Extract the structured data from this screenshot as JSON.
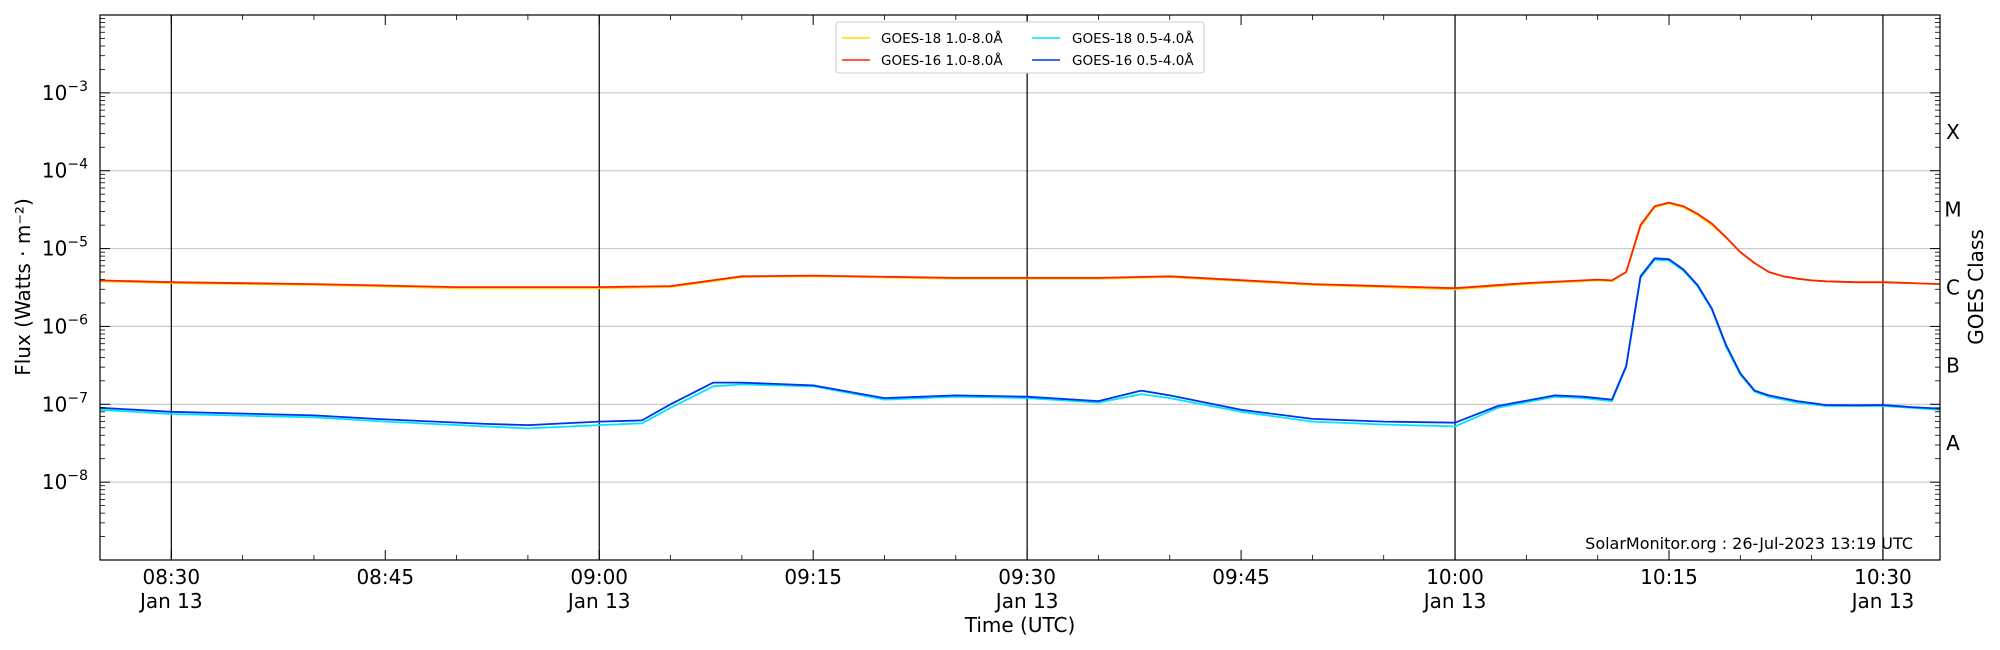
{
  "chart_data": {
    "type": "line",
    "xlabel": "Time (UTC)",
    "ylabel": "Flux (Watts · m⁻²)",
    "right_label": "GOES Class",
    "credit": "SolarMonitor.org : 26-Jul-2023 13:19 UTC",
    "y_scale": "log",
    "ylim": [
      1e-09,
      0.01
    ],
    "xlim": [
      "08:25",
      "10:34"
    ],
    "grid": "horizontal at decades",
    "legend_placement": "top-center",
    "y_ticks": [
      {
        "value": 0.001,
        "base": "10",
        "exp": "−3"
      },
      {
        "value": 0.0001,
        "base": "10",
        "exp": "−4"
      },
      {
        "value": 1e-05,
        "base": "10",
        "exp": "−5"
      },
      {
        "value": 1e-06,
        "base": "10",
        "exp": "−6"
      },
      {
        "value": 1e-07,
        "base": "10",
        "exp": "−7"
      },
      {
        "value": 1e-08,
        "base": "10",
        "exp": "−8"
      }
    ],
    "x_ticks": [
      {
        "time": "08:30",
        "line1": "08:30",
        "line2": "Jan 13",
        "major": true
      },
      {
        "time": "08:45",
        "line1": "08:45",
        "line2": "",
        "major": false
      },
      {
        "time": "09:00",
        "line1": "09:00",
        "line2": "Jan 13",
        "major": true
      },
      {
        "time": "09:15",
        "line1": "09:15",
        "line2": "",
        "major": false
      },
      {
        "time": "09:30",
        "line1": "09:30",
        "line2": "Jan 13",
        "major": true
      },
      {
        "time": "09:45",
        "line1": "09:45",
        "line2": "",
        "major": false
      },
      {
        "time": "10:00",
        "line1": "10:00",
        "line2": "Jan 13",
        "major": true
      },
      {
        "time": "10:15",
        "line1": "10:15",
        "line2": "",
        "major": false
      },
      {
        "time": "10:30",
        "line1": "10:30",
        "line2": "Jan 13",
        "major": true
      }
    ],
    "goes_classes": [
      {
        "label": "X",
        "flux": 0.000316
      },
      {
        "label": "M",
        "flux": 3.16e-05
      },
      {
        "label": "C",
        "flux": 3.16e-06
      },
      {
        "label": "B",
        "flux": 3.16e-07
      },
      {
        "label": "A",
        "flux": 3.16e-08
      }
    ],
    "series": [
      {
        "name": "GOES-18 1.0-8.0Å",
        "color": "#ffd700",
        "x": [
          "08:25",
          "08:30",
          "08:40",
          "08:50",
          "09:00",
          "09:05",
          "09:10",
          "09:15",
          "09:25",
          "09:35",
          "09:40",
          "09:50",
          "10:00",
          "10:05",
          "10:10",
          "10:11",
          "10:12",
          "10:13",
          "10:14",
          "10:15",
          "10:16",
          "10:17",
          "10:18",
          "10:19",
          "10:20",
          "10:21",
          "10:22",
          "10:23",
          "10:24",
          "10:25",
          "10:26",
          "10:28",
          "10:30",
          "10:32",
          "10:34"
        ],
        "y": [
          3.8e-06,
          3.6e-06,
          3.4e-06,
          3.1e-06,
          3.1e-06,
          3.2e-06,
          4.3e-06,
          4.4e-06,
          4.1e-06,
          4.1e-06,
          4.3e-06,
          3.4e-06,
          3e-06,
          3.5e-06,
          3.9e-06,
          3.8e-06,
          5e-06,
          1.9e-05,
          3.4e-05,
          3.8e-05,
          3.4e-05,
          2.7e-05,
          2e-05,
          1.4e-05,
          9e-06,
          6.5e-06,
          5e-06,
          4.4e-06,
          4.1e-06,
          3.9e-06,
          3.8e-06,
          3.7e-06,
          3.7e-06,
          3.6e-06,
          3.5e-06
        ]
      },
      {
        "name": "GOES-16 1.0-8.0Å",
        "color": "#ff2200",
        "x": [
          "08:25",
          "08:30",
          "08:40",
          "08:50",
          "09:00",
          "09:05",
          "09:10",
          "09:15",
          "09:25",
          "09:35",
          "09:40",
          "09:50",
          "10:00",
          "10:05",
          "10:10",
          "10:11",
          "10:12",
          "10:13",
          "10:14",
          "10:15",
          "10:16",
          "10:17",
          "10:18",
          "10:19",
          "10:20",
          "10:21",
          "10:22",
          "10:23",
          "10:24",
          "10:25",
          "10:26",
          "10:28",
          "10:30",
          "10:32",
          "10:34"
        ],
        "y": [
          3.9e-06,
          3.7e-06,
          3.5e-06,
          3.2e-06,
          3.2e-06,
          3.3e-06,
          4.4e-06,
          4.5e-06,
          4.2e-06,
          4.2e-06,
          4.4e-06,
          3.5e-06,
          3.1e-06,
          3.6e-06,
          4e-06,
          3.9e-06,
          5e-06,
          2e-05,
          3.5e-05,
          3.9e-05,
          3.5e-05,
          2.8e-05,
          2.1e-05,
          1.4e-05,
          9e-06,
          6.5e-06,
          5e-06,
          4.4e-06,
          4.1e-06,
          3.9e-06,
          3.8e-06,
          3.7e-06,
          3.7e-06,
          3.6e-06,
          3.5e-06
        ]
      },
      {
        "name": "GOES-18 0.5-4.0Å",
        "color": "#00e5ff",
        "x": [
          "08:25",
          "08:30",
          "08:40",
          "08:45",
          "08:52",
          "08:55",
          "09:00",
          "09:03",
          "09:05",
          "09:08",
          "09:10",
          "09:15",
          "09:20",
          "09:25",
          "09:30",
          "09:35",
          "09:38",
          "09:40",
          "09:45",
          "09:50",
          "09:55",
          "10:00",
          "10:03",
          "10:07",
          "10:09",
          "10:11",
          "10:12",
          "10:13",
          "10:14",
          "10:15",
          "10:16",
          "10:17",
          "10:18",
          "10:19",
          "10:20",
          "10:21",
          "10:22",
          "10:24",
          "10:26",
          "10:28",
          "10:30",
          "10:32",
          "10:34"
        ],
        "y": [
          8.5e-08,
          7.5e-08,
          6.8e-08,
          6e-08,
          5.2e-08,
          4.9e-08,
          5.4e-08,
          5.7e-08,
          9e-08,
          1.7e-07,
          1.8e-07,
          1.7e-07,
          1.15e-07,
          1.25e-07,
          1.2e-07,
          1.05e-07,
          1.35e-07,
          1.2e-07,
          8e-08,
          6e-08,
          5.5e-08,
          5.2e-08,
          9e-08,
          1.25e-07,
          1.2e-07,
          1.1e-07,
          3e-07,
          4.2e-06,
          7.2e-06,
          7e-06,
          5.2e-06,
          3.3e-06,
          1.65e-06,
          5.5e-07,
          2.4e-07,
          1.45e-07,
          1.25e-07,
          1.05e-07,
          9.5e-08,
          9.5e-08,
          9.5e-08,
          9e-08,
          8.5e-08
        ]
      },
      {
        "name": "GOES-16 0.5-4.0Å",
        "color": "#0033ee",
        "x": [
          "08:25",
          "08:30",
          "08:40",
          "08:45",
          "08:52",
          "08:55",
          "09:00",
          "09:03",
          "09:05",
          "09:08",
          "09:10",
          "09:15",
          "09:20",
          "09:25",
          "09:30",
          "09:35",
          "09:38",
          "09:40",
          "09:45",
          "09:50",
          "09:55",
          "10:00",
          "10:03",
          "10:07",
          "10:09",
          "10:11",
          "10:12",
          "10:13",
          "10:14",
          "10:15",
          "10:16",
          "10:17",
          "10:18",
          "10:19",
          "10:20",
          "10:21",
          "10:22",
          "10:24",
          "10:26",
          "10:28",
          "10:30",
          "10:32",
          "10:34"
        ],
        "y": [
          9e-08,
          8e-08,
          7.2e-08,
          6.4e-08,
          5.6e-08,
          5.4e-08,
          6e-08,
          6.2e-08,
          1e-07,
          1.9e-07,
          1.9e-07,
          1.75e-07,
          1.2e-07,
          1.3e-07,
          1.25e-07,
          1.1e-07,
          1.5e-07,
          1.3e-07,
          8.5e-08,
          6.5e-08,
          6e-08,
          5.8e-08,
          9.5e-08,
          1.3e-07,
          1.25e-07,
          1.15e-07,
          3.1e-07,
          4.4e-06,
          7.5e-06,
          7.3e-06,
          5.4e-06,
          3.4e-06,
          1.7e-06,
          5.8e-07,
          2.5e-07,
          1.5e-07,
          1.3e-07,
          1.1e-07,
          9.8e-08,
          9.7e-08,
          9.8e-08,
          9.2e-08,
          8.8e-08
        ]
      }
    ]
  }
}
